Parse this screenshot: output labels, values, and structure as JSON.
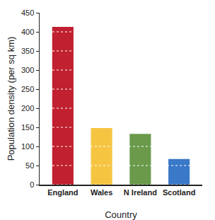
{
  "chart_data": {
    "type": "bar",
    "x_label": "Country",
    "y_label": "Population density (per sq km)",
    "categories": [
      "England",
      "Wales",
      "N Ireland",
      "Scotland"
    ],
    "values": [
      413,
      148,
      133,
      67
    ],
    "colors": [
      "#c0202f",
      "#f5c542",
      "#6a9a4a",
      "#3a78c8"
    ],
    "ylim": [
      0,
      450
    ],
    "yticks": [
      0,
      50,
      100,
      150,
      200,
      250,
      300,
      350,
      400,
      450
    ],
    "grid": true
  }
}
